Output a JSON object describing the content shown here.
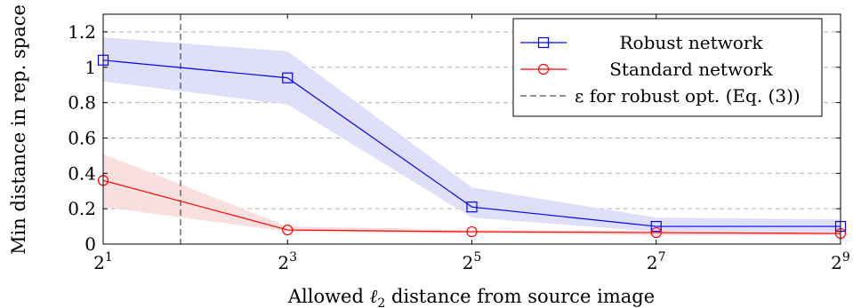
{
  "chart_data": {
    "type": "line",
    "xlabel": "Allowed ℓ₂ distance from source image",
    "ylabel": "Min distance in rep. space",
    "x_scale": "log2",
    "x": [
      2,
      8,
      32,
      128,
      512
    ],
    "x_ticks": [
      {
        "value": 2,
        "base": "2",
        "exp": "1"
      },
      {
        "value": 8,
        "base": "2",
        "exp": "3"
      },
      {
        "value": 32,
        "base": "2",
        "exp": "5"
      },
      {
        "value": 128,
        "base": "2",
        "exp": "7"
      },
      {
        "value": 512,
        "base": "2",
        "exp": "9"
      }
    ],
    "xlim": [
      2,
      512
    ],
    "ylim": [
      0,
      1.3
    ],
    "y_ticks": [
      0,
      0.2,
      0.4,
      0.6,
      0.8,
      1,
      1.2
    ],
    "y_tick_labels": [
      "0",
      "0.2",
      "0.4",
      "0.6",
      "0.8",
      "1",
      "1.2"
    ],
    "grid": "horizontal dashed",
    "legend_position": "top-right",
    "series": [
      {
        "name": "Robust network",
        "color": "#0000ff",
        "fill": "#dcdcfa",
        "marker": "square",
        "values": [
          1.04,
          0.94,
          0.21,
          0.1,
          0.1
        ],
        "lower": [
          0.92,
          0.79,
          0.15,
          0.07,
          0.07
        ],
        "upper": [
          1.17,
          1.09,
          0.32,
          0.15,
          0.14
        ]
      },
      {
        "name": "Standard network",
        "color": "#ff0000",
        "fill": "#fadcdc",
        "marker": "circle",
        "values": [
          0.36,
          0.08,
          0.07,
          0.065,
          0.06
        ],
        "lower": [
          0.21,
          0.07,
          0.06,
          0.05,
          0.05
        ],
        "upper": [
          0.51,
          0.1,
          0.08,
          0.075,
          0.07
        ]
      }
    ],
    "reference_line": {
      "label": "ε for robust opt. (Eq. (3))",
      "x": 3.58,
      "color": "#555555",
      "style": "dashed"
    }
  }
}
